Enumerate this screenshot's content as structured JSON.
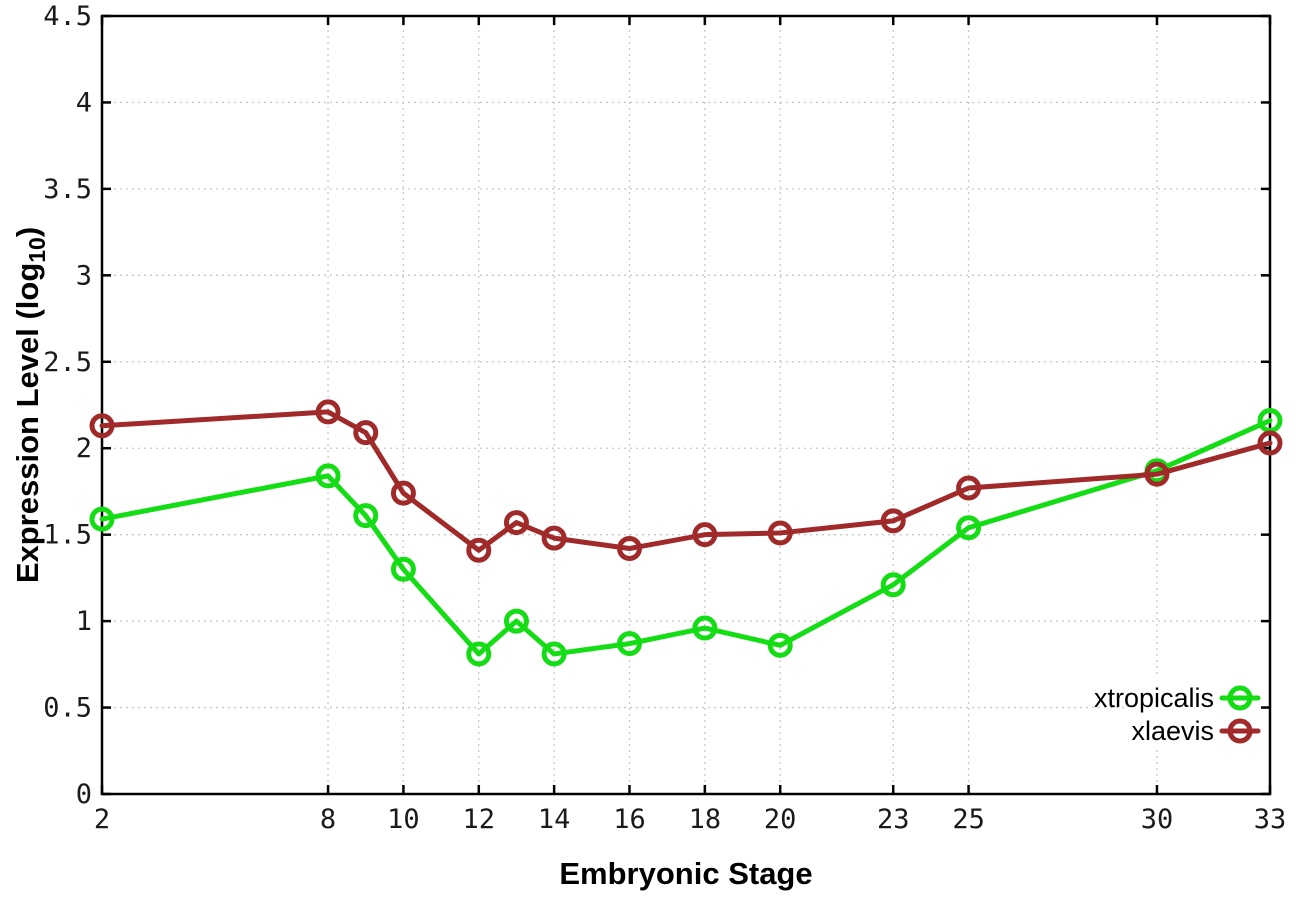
{
  "chart_data": {
    "type": "line",
    "title": "",
    "xlabel": "Embryonic Stage",
    "ylabel": "Expression Level (log10)",
    "ylabel_parts": {
      "prefix": "Expression Level (log",
      "sub": "10",
      "suffix": ")"
    },
    "xlim": [
      2,
      33
    ],
    "ylim": [
      0,
      4.5
    ],
    "grid": true,
    "grid_style": "dotted",
    "legend_position": "inside-bottom-right",
    "marker": "open-circle",
    "line_width": 5,
    "x": [
      2,
      8,
      9,
      10,
      12,
      13,
      14,
      16,
      18,
      20,
      23,
      25,
      30,
      33
    ],
    "xticks": [
      2,
      8,
      10,
      12,
      14,
      16,
      18,
      20,
      23,
      25,
      30,
      33
    ],
    "xtick_labels": [
      "2",
      "8",
      "10",
      "12",
      "14",
      "16",
      "18",
      "20",
      "23",
      "25",
      "30",
      "33"
    ],
    "yticks": [
      0,
      0.5,
      1,
      1.5,
      2,
      2.5,
      3,
      3.5,
      4,
      4.5
    ],
    "ytick_labels": [
      "0",
      "0.5",
      "1",
      "1.5",
      "2",
      "2.5",
      "3",
      "3.5",
      "4",
      "4.5"
    ],
    "series": [
      {
        "name": "xtropicalis",
        "color": "#15dd15",
        "values": [
          1.59,
          1.84,
          1.61,
          1.3,
          0.81,
          1.0,
          0.81,
          0.87,
          0.96,
          0.86,
          1.21,
          1.54,
          1.87,
          2.16
        ]
      },
      {
        "name": "xlaevis",
        "color": "#a02929",
        "values": [
          2.13,
          2.21,
          2.09,
          1.74,
          1.41,
          1.57,
          1.48,
          1.42,
          1.5,
          1.51,
          1.58,
          1.77,
          1.85,
          2.03
        ]
      }
    ]
  },
  "colors": {
    "background": "#ffffff",
    "border": "#000000",
    "grid": "#c8c8c8",
    "tick_text": "#1a1a1a",
    "xtropicalis": "#15dd15",
    "xlaevis": "#a02929"
  }
}
